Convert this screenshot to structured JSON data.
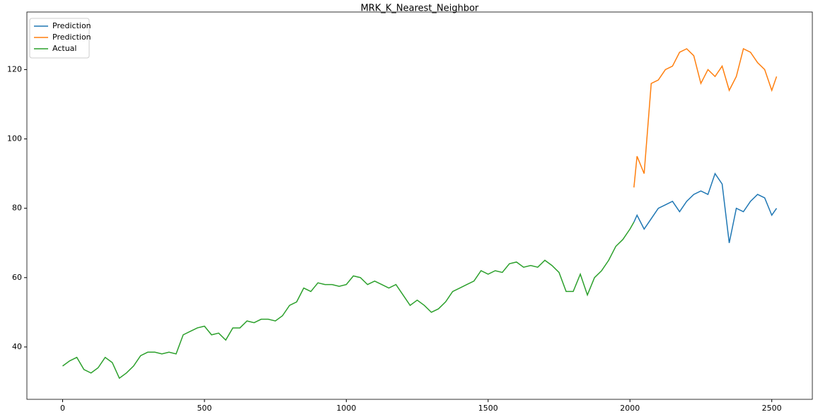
{
  "chart_data": {
    "type": "line",
    "title": "MRK_K_Nearest_Neighbor",
    "x": [
      0,
      25,
      50,
      75,
      100,
      125,
      150,
      175,
      200,
      225,
      250,
      275,
      300,
      325,
      350,
      375,
      400,
      425,
      450,
      475,
      500,
      525,
      550,
      575,
      600,
      625,
      650,
      675,
      700,
      725,
      750,
      775,
      800,
      825,
      850,
      875,
      900,
      925,
      950,
      975,
      1000,
      1025,
      1050,
      1075,
      1100,
      1125,
      1150,
      1175,
      1200,
      1225,
      1250,
      1275,
      1300,
      1325,
      1350,
      1375,
      1400,
      1425,
      1450,
      1475,
      1500,
      1525,
      1550,
      1575,
      1600,
      1625,
      1650,
      1675,
      1700,
      1725,
      1750,
      1775,
      1800,
      1825,
      1850,
      1875,
      1900,
      1925,
      1950,
      1975,
      2000,
      2014,
      2025,
      2050,
      2075,
      2100,
      2125,
      2150,
      2175,
      2200,
      2225,
      2250,
      2275,
      2300,
      2325,
      2350,
      2375,
      2400,
      2425,
      2450,
      2475,
      2500,
      2517
    ],
    "series": [
      {
        "name": "Prediction",
        "color": "#1f77b4",
        "values": [
          null,
          null,
          null,
          null,
          null,
          null,
          null,
          null,
          null,
          null,
          null,
          null,
          null,
          null,
          null,
          null,
          null,
          null,
          null,
          null,
          null,
          null,
          null,
          null,
          null,
          null,
          null,
          null,
          null,
          null,
          null,
          null,
          null,
          null,
          null,
          null,
          null,
          null,
          null,
          null,
          null,
          null,
          null,
          null,
          null,
          null,
          null,
          null,
          null,
          null,
          null,
          null,
          null,
          null,
          null,
          null,
          null,
          null,
          null,
          null,
          null,
          null,
          null,
          null,
          null,
          null,
          null,
          null,
          null,
          null,
          null,
          null,
          null,
          null,
          null,
          null,
          null,
          null,
          null,
          null,
          null,
          76,
          78,
          74,
          77,
          80,
          81,
          82,
          79,
          82,
          84,
          85,
          84,
          90,
          87,
          70,
          80,
          79,
          82,
          84,
          83,
          78,
          80
        ]
      },
      {
        "name": "Prediction",
        "color": "#ff7f0e",
        "values": [
          null,
          null,
          null,
          null,
          null,
          null,
          null,
          null,
          null,
          null,
          null,
          null,
          null,
          null,
          null,
          null,
          null,
          null,
          null,
          null,
          null,
          null,
          null,
          null,
          null,
          null,
          null,
          null,
          null,
          null,
          null,
          null,
          null,
          null,
          null,
          null,
          null,
          null,
          null,
          null,
          null,
          null,
          null,
          null,
          null,
          null,
          null,
          null,
          null,
          null,
          null,
          null,
          null,
          null,
          null,
          null,
          null,
          null,
          null,
          null,
          null,
          null,
          null,
          null,
          null,
          null,
          null,
          null,
          null,
          null,
          null,
          null,
          null,
          null,
          null,
          null,
          null,
          null,
          null,
          null,
          null,
          86,
          95,
          90,
          116,
          117,
          120,
          121,
          125,
          126,
          124,
          116,
          120,
          118,
          121,
          114,
          118,
          126,
          125,
          122,
          120,
          114,
          118
        ]
      },
      {
        "name": "Actual",
        "color": "#2ca02c",
        "values": [
          34.5,
          36,
          37,
          33.5,
          32.5,
          34,
          37,
          35.5,
          31,
          32.5,
          34.5,
          37.5,
          38.5,
          38.5,
          38,
          38.5,
          38,
          43.5,
          44.5,
          45.5,
          46,
          43.5,
          44,
          42,
          45.5,
          45.5,
          47.5,
          47,
          48,
          48,
          47.5,
          49,
          52,
          53,
          57,
          56,
          58.5,
          58,
          58,
          57.5,
          58,
          60.5,
          60,
          58,
          59,
          58,
          57,
          58,
          55,
          52,
          53.5,
          52,
          50,
          51,
          53,
          56,
          57,
          58,
          59,
          62,
          61,
          62,
          61.5,
          64,
          64.5,
          63,
          63.5,
          63,
          65,
          63.5,
          61.5,
          56,
          56,
          61,
          55,
          60,
          62,
          65,
          69,
          71,
          74,
          76,
          null,
          null,
          null,
          null,
          null,
          null,
          null,
          null,
          null,
          null,
          null,
          null,
          null,
          null,
          null,
          null,
          null,
          null,
          null,
          null,
          null
        ]
      }
    ],
    "xlim": [
      -126,
      2643
    ],
    "ylim": [
      24.9,
      136.6
    ],
    "xticks": [
      0,
      500,
      1000,
      1500,
      2000,
      2500
    ],
    "yticks": [
      40,
      60,
      80,
      100,
      120
    ],
    "legend": "upper left"
  }
}
